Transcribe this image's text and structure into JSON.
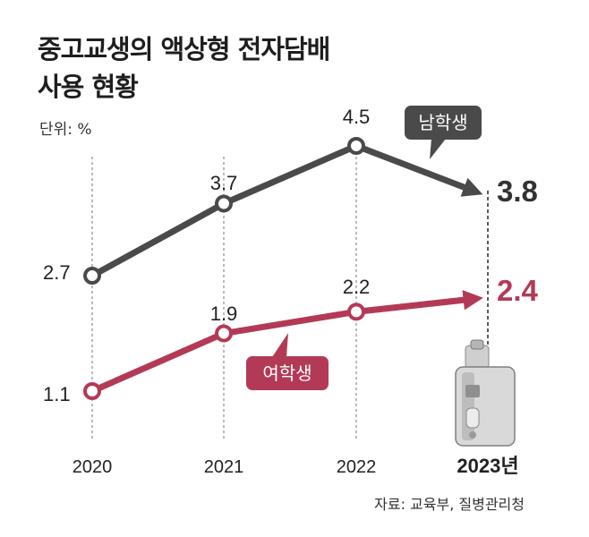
{
  "header": {
    "title_line1": "중고교생의 액상형 전자담배",
    "title_line2": "사용 현황",
    "unit": "단위: %"
  },
  "source": "자료: 교육부, 질병관리청",
  "colors": {
    "male": "#4a4a4a",
    "female": "#b33a56",
    "final_male": "#333333",
    "final_female": "#b33a56"
  },
  "chart_data": {
    "type": "line",
    "title": "중고교생의 액상형 전자담배 사용 현황",
    "unit": "%",
    "categories": [
      "2020",
      "2021",
      "2022",
      "2023년"
    ],
    "series": [
      {
        "name": "남학생",
        "values": [
          2.7,
          3.7,
          4.5,
          3.8
        ]
      },
      {
        "name": "여학생",
        "values": [
          1.1,
          1.9,
          2.2,
          2.4
        ]
      }
    ],
    "value_labels": [
      [
        "2.7",
        "3.7",
        "4.5",
        "3.8"
      ],
      [
        "1.1",
        "1.9",
        "2.2",
        "2.4"
      ]
    ]
  }
}
